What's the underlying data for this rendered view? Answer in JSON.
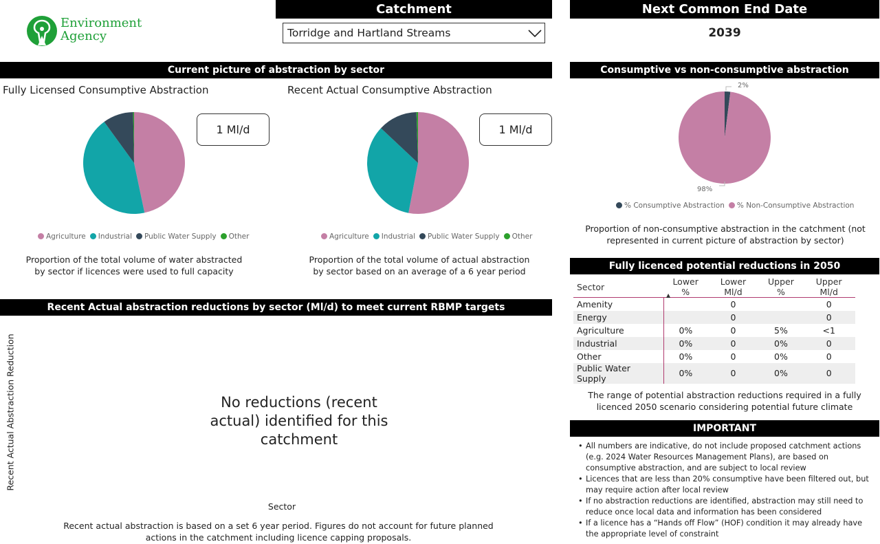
{
  "logo": {
    "line1": "Environment",
    "line2": "Agency",
    "color": "#1FA038"
  },
  "catchment": {
    "title": "Catchment",
    "selected": "Torridge and Hartland Streams"
  },
  "end_date": {
    "title": "Next Common End Date",
    "value": "2039"
  },
  "current_picture": {
    "title": "Current picture of abstraction by sector",
    "licensed": {
      "title": "Fully Licensed Consumptive Abstraction",
      "card": "1 Ml/d",
      "caption": "Proportion of the total volume of water abstracted by sector if licences were used to full capacity"
    },
    "actual": {
      "title": "Recent Actual Consumptive Abstraction",
      "card": "1 Ml/d",
      "caption": "Proportion of the total volume of actual abstraction by sector based on an average of a 6 year period"
    },
    "legend": [
      "Agriculture",
      "Industrial",
      "Public Water Supply",
      "Other"
    ]
  },
  "colors": {
    "Agriculture": "#C47FA5",
    "Industrial": "#12A5A8",
    "Public Water Supply": "#34495A",
    "Other": "#2CA02C"
  },
  "reductions": {
    "title": "Recent Actual abstraction reductions by sector (Ml/d) to meet current RBMP targets",
    "ylabel": "Recent Actual Abstraction Reduction",
    "xlabel": "Sector",
    "empty_message": "No reductions (recent actual) identified for this catchment",
    "footnote": "Recent actual abstraction is based on a set 6 year period. Figures do not account for future planned actions in the catchment including licence capping proposals."
  },
  "consumptive": {
    "title": "Consumptive vs non-consumptive abstraction",
    "label_small": "2%",
    "label_large": "98%",
    "legend": [
      "% Consumptive Abstraction",
      "% Non-Consumptive Abstraction"
    ],
    "caption": "Proportion of non-consumptive abstraction in the catchment (not represented in current picture of abstraction by sector)"
  },
  "potential": {
    "title": "Fully licenced potential reductions in 2050",
    "columns": [
      "Sector",
      "Lower %",
      "Lower Ml/d",
      "Upper %",
      "Upper Ml/d"
    ],
    "sort_column": "Lower %",
    "rows": [
      [
        "Amenity",
        "",
        "0",
        "",
        "0"
      ],
      [
        "Energy",
        "",
        "0",
        "",
        "0"
      ],
      [
        "Agriculture",
        "0%",
        "0",
        "5%",
        "<1"
      ],
      [
        "Industrial",
        "0%",
        "0",
        "0%",
        "0"
      ],
      [
        "Other",
        "0%",
        "0",
        "0%",
        "0"
      ],
      [
        "Public Water Supply",
        "0%",
        "0",
        "0%",
        "0"
      ]
    ],
    "caption": "The range of potential abstraction reductions required in a fully licenced 2050 scenario considering potential future climate"
  },
  "important": {
    "title": "IMPORTANT",
    "items": [
      "All numbers are indicative, do not include proposed catchment actions (e.g. 2024 Water Resources Management Plans), are based on consumptive abstraction, and are subject to local review",
      "Licences that are less than 20% consumptive have been filtered out, but may require action after local review",
      "If no abstraction reductions are identified, abstraction may still need to reduce once local data and information has been considered",
      "If a licence has a “Hands off Flow” (HOF) condition it may already have the appropriate level of constraint"
    ]
  },
  "chart_data": [
    {
      "type": "pie",
      "title": "Fully Licensed Consumptive Abstraction",
      "categories": [
        "Agriculture",
        "Industrial",
        "Public Water Supply",
        "Other"
      ],
      "values": [
        46.7,
        43.3,
        9.7,
        0.3
      ],
      "legend": "bottom"
    },
    {
      "type": "pie",
      "title": "Recent Actual Consumptive Abstraction",
      "categories": [
        "Agriculture",
        "Industrial",
        "Public Water Supply",
        "Other"
      ],
      "values": [
        53,
        34,
        12.5,
        0.5
      ],
      "legend": "bottom"
    },
    {
      "type": "pie",
      "categories": [
        "% Consumptive Abstraction",
        "% Non-Consumptive Abstraction"
      ],
      "values": [
        2,
        98
      ],
      "data_labels": [
        "2%",
        "98%"
      ],
      "colors": [
        "#34495A",
        "#C47FA5"
      ],
      "legend": "bottom"
    }
  ]
}
